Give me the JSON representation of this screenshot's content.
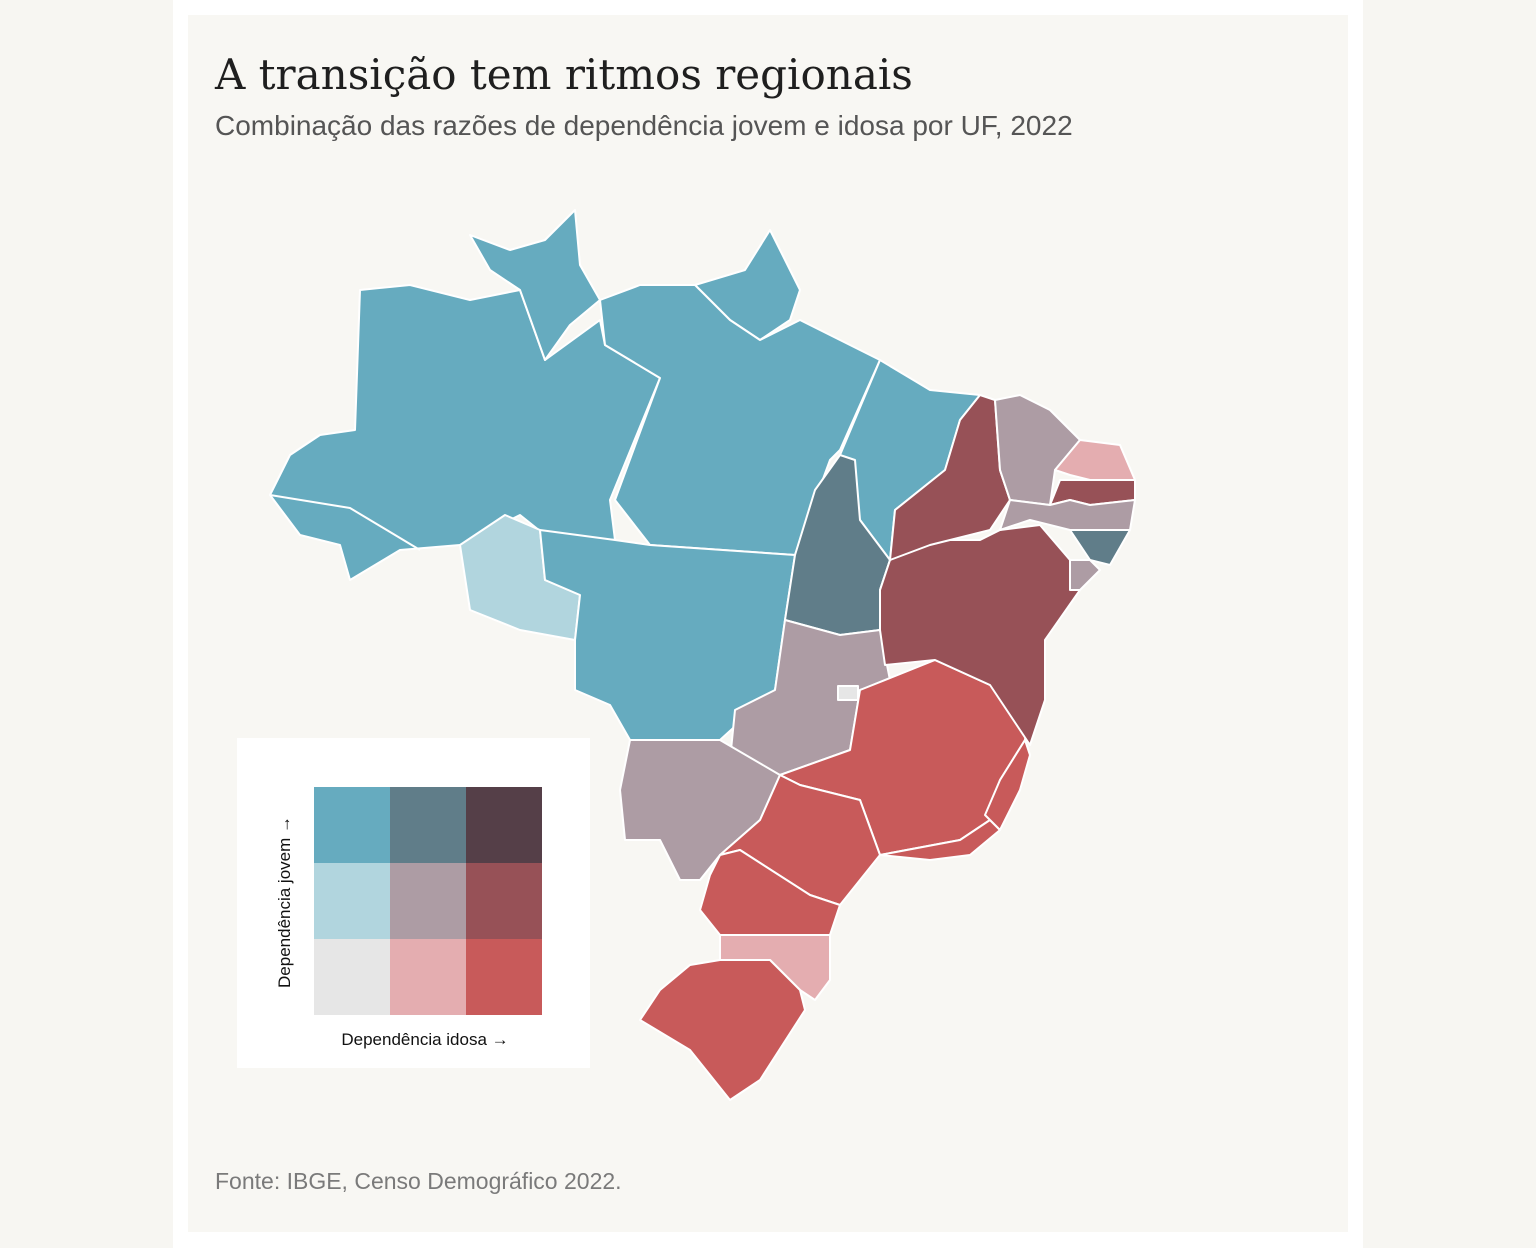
{
  "header": {
    "title": "A transição tem ritmos regionais",
    "subtitle": "Combinação das razões de dependência jovem e idosa por UF, 2022"
  },
  "legend": {
    "x_label": "Dependência idosa →",
    "y_label": "Dependência jovem →",
    "colors": [
      [
        "#66abbf",
        "#607d89",
        "#553f48"
      ],
      [
        "#b1d5de",
        "#ad9ca4",
        "#975157"
      ],
      [
        "#e6e6e6",
        "#e4adb0",
        "#c85a5a"
      ]
    ]
  },
  "footer": {
    "source": "Fonte: IBGE, Censo Demográfico 2022."
  }
}
